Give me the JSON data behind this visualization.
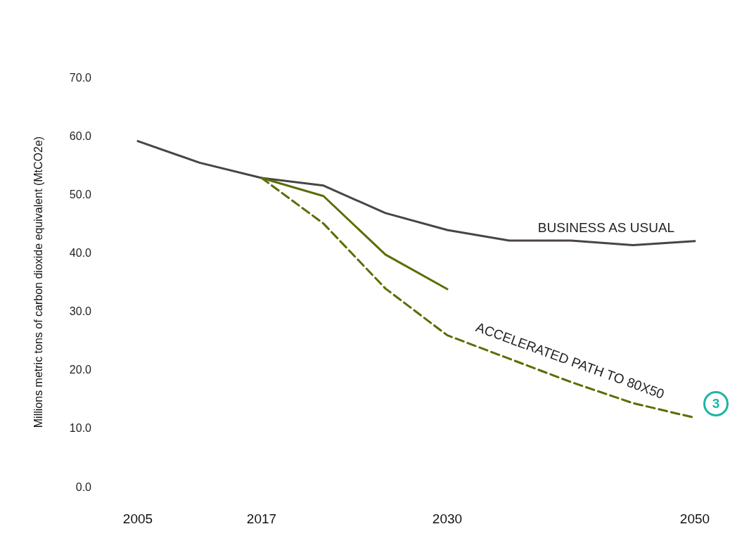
{
  "chart_data": {
    "type": "line",
    "ylabel": "Millions metric tons of carbon dioxide equivalent (MtCO2e)",
    "categories": [
      "2005",
      null,
      "2017",
      null,
      null,
      "2030",
      null,
      null,
      null,
      "2050"
    ],
    "series": [
      {
        "name": "BUSINESS AS USUAL",
        "color": "#4a4443",
        "values": [
          59.1,
          55.4,
          52.8,
          51.5,
          46.8,
          43.9,
          42.1,
          42.1,
          41.3,
          42.0
        ]
      },
      {
        "color": "#5a6e00",
        "values": [
          null,
          null,
          52.8,
          49.7,
          39.7,
          33.8,
          null,
          null,
          null,
          null
        ]
      },
      {
        "name": "ACCELERATED PATH TO 80X50",
        "color": "#5a6e00",
        "line_style": "dashed",
        "values": [
          null,
          null,
          52.8,
          45.0,
          33.9,
          25.9,
          21.9,
          17.9,
          14.3,
          11.8
        ]
      }
    ],
    "ylim": [
      0,
      70
    ],
    "yticks": [
      {
        "value": 0,
        "label": "0.0"
      },
      {
        "value": 10,
        "label": "10.0"
      },
      {
        "value": 20,
        "label": "20.0"
      },
      {
        "value": 30,
        "label": "30.0"
      },
      {
        "value": 40,
        "label": "40.0"
      },
      {
        "value": 50,
        "label": "50.0"
      },
      {
        "value": 60,
        "label": "60.0"
      },
      {
        "value": 70,
        "label": "70.0"
      }
    ],
    "annotations": [
      "3"
    ],
    "grid": false,
    "legend": false,
    "marker": "none"
  }
}
